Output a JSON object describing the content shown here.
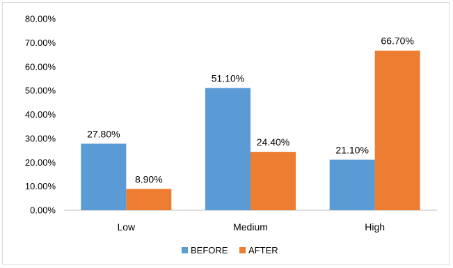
{
  "chart_data": {
    "type": "bar",
    "title": "",
    "xlabel": "",
    "ylabel": "",
    "categories": [
      "Low",
      "Medium",
      "High"
    ],
    "series": [
      {
        "name": "BEFORE",
        "color": "#5b9bd5",
        "values": [
          27.8,
          51.1,
          21.1
        ],
        "labels": [
          "27.80%",
          "51.10%",
          "21.10%"
        ]
      },
      {
        "name": "AFTER",
        "color": "#ed7d31",
        "values": [
          8.9,
          24.4,
          66.7
        ],
        "labels": [
          "8.90%",
          "24.40%",
          "66.70%"
        ]
      }
    ],
    "ylim": [
      0,
      80
    ],
    "yticks": [
      0,
      10,
      20,
      30,
      40,
      50,
      60,
      70,
      80
    ],
    "ytick_labels": [
      "0.00%",
      "10.00%",
      "20.00%",
      "30.00%",
      "40.00%",
      "50.00%",
      "60.00%",
      "70.00%",
      "80.00%"
    ],
    "grid": false,
    "legend_position": "bottom",
    "axis_color": "#bfbfbf"
  }
}
